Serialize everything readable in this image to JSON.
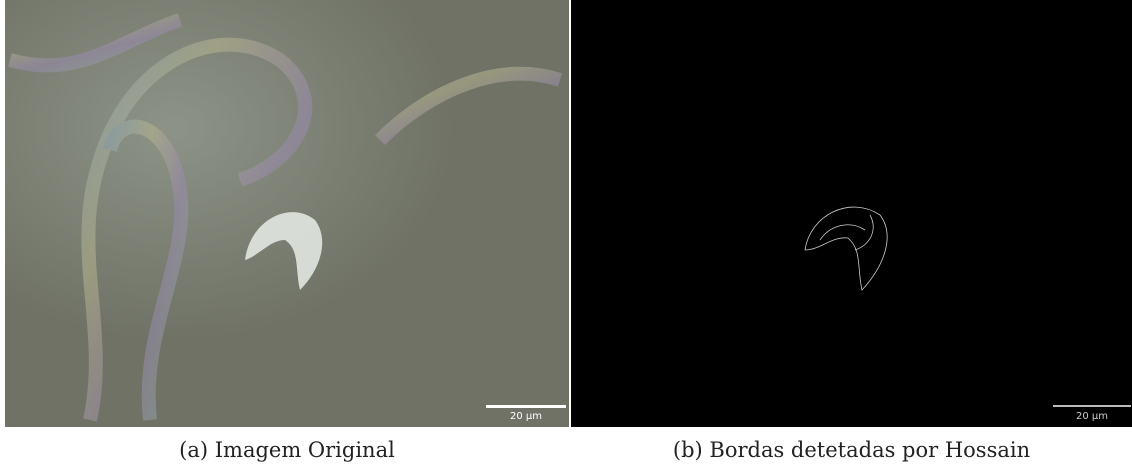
{
  "figures": [
    {
      "scale_label": "20 µm",
      "caption": "(a) Imagem Original"
    },
    {
      "scale_label": "20 µm",
      "caption": "(b) Bordas detetadas por Hossain"
    }
  ]
}
